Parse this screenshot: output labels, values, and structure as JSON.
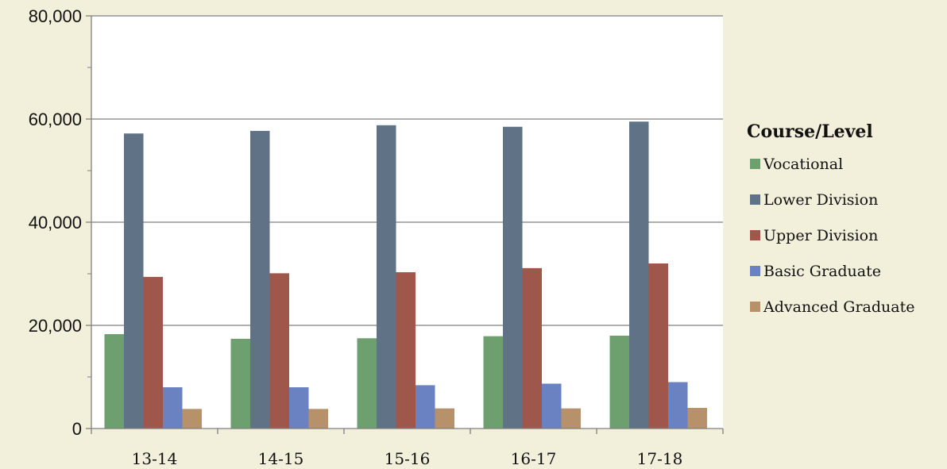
{
  "chart_data": {
    "type": "bar",
    "categories": [
      "13-14",
      "14-15",
      "15-16",
      "16-17",
      "17-18"
    ],
    "series": [
      {
        "name": "Vocational",
        "color": "#6e9f6e",
        "values": [
          18300,
          17400,
          17500,
          17900,
          18000
        ]
      },
      {
        "name": "Lower Division",
        "color": "#5f7286",
        "values": [
          57200,
          57700,
          58800,
          58500,
          59500
        ]
      },
      {
        "name": "Upper Division",
        "color": "#a0574b",
        "values": [
          29400,
          30100,
          30300,
          31100,
          32000
        ]
      },
      {
        "name": "Basic Graduate",
        "color": "#6a82c2",
        "values": [
          8000,
          8000,
          8400,
          8700,
          9000
        ]
      },
      {
        "name": "Advanced Graduate",
        "color": "#b6916a",
        "values": [
          3800,
          3800,
          3900,
          3900,
          4000
        ]
      }
    ],
    "ylim": [
      0,
      80000
    ],
    "ytick_labels": [
      "0",
      "20,000",
      "40,000",
      "60,000",
      "80,000"
    ],
    "grid": true,
    "legend": {
      "title": "Course/Level",
      "position": "right"
    },
    "title": "",
    "xlabel": "",
    "ylabel": ""
  }
}
